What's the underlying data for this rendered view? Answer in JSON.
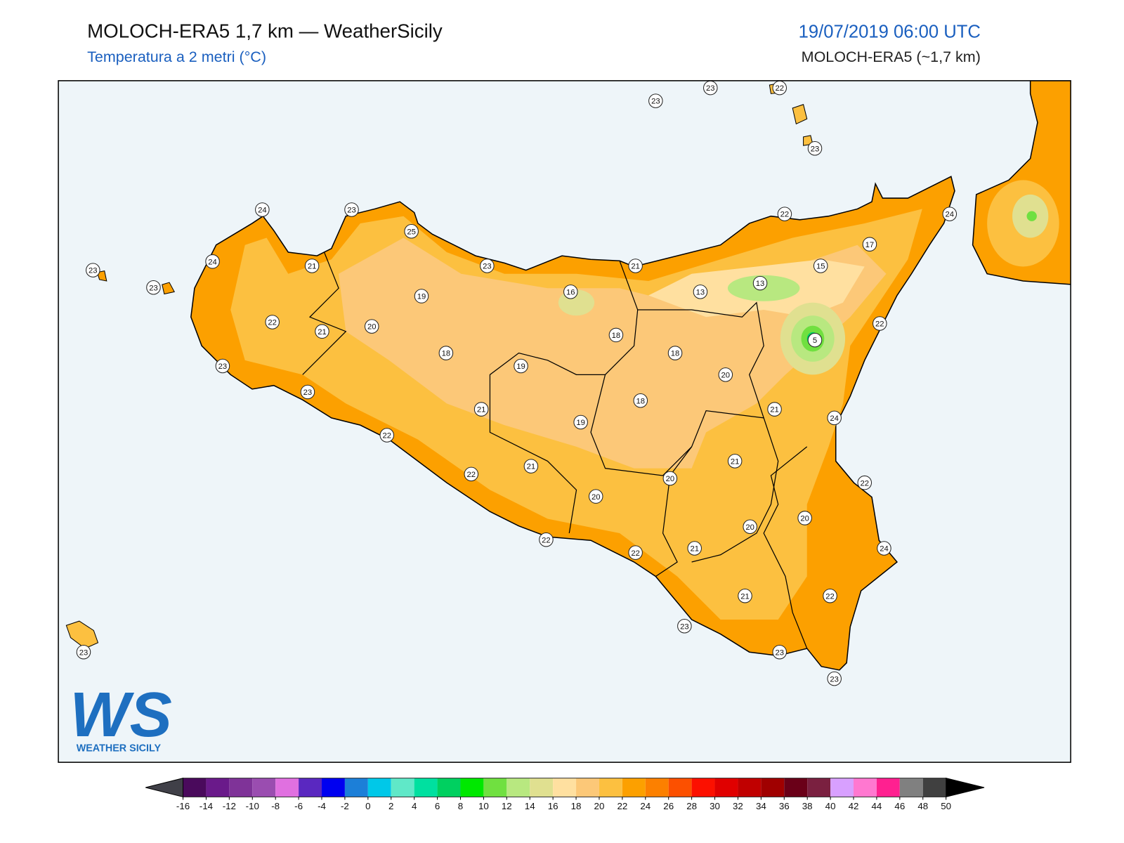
{
  "header": {
    "title": "MOLOCH-ERA5 1,7 km — WeatherSicily",
    "subtitle": "Temperatura a 2 metri (°C)",
    "datetime": "19/07/2019 06:00 UTC",
    "model": "MOLOCH-ERA5 (~1,7 km)"
  },
  "stations": [
    23,
    23,
    22,
    23,
    24,
    23,
    25,
    22,
    24,
    17,
    23,
    24,
    21,
    23,
    21,
    15,
    23,
    19,
    16,
    13,
    13,
    22,
    21,
    20,
    22,
    5,
    18,
    18,
    18,
    23,
    19,
    20,
    23,
    18,
    21,
    21,
    19,
    24,
    22,
    21,
    21,
    22,
    20,
    22,
    20,
    20,
    20,
    22,
    22,
    21,
    24,
    21,
    22,
    23,
    23,
    23,
    23
  ],
  "colorbar": {
    "ticks": [
      -16,
      -14,
      -12,
      -10,
      -8,
      -6,
      -4,
      -2,
      0,
      2,
      4,
      6,
      8,
      10,
      12,
      14,
      16,
      18,
      20,
      22,
      24,
      26,
      28,
      30,
      32,
      34,
      36,
      38,
      40,
      42,
      44,
      46,
      48,
      50
    ],
    "colors": [
      "#4a0a5c",
      "#6a1a8a",
      "#7f3398",
      "#9a4db0",
      "#e070e0",
      "#5a28c0",
      "#0000f0",
      "#1c7fd8",
      "#00c8e8",
      "#60e8c8",
      "#00e0a0",
      "#00d060",
      "#00e800",
      "#70e040",
      "#b8e880",
      "#e0e090",
      "#ffe0a0",
      "#fcc878",
      "#fcc040",
      "#fca000",
      "#fc8000",
      "#fc5000",
      "#fc1000",
      "#e00000",
      "#c00000",
      "#a00000",
      "#6a0018",
      "#7a2040",
      "#d8a0ff",
      "#ff78d0",
      "#ff2090",
      "#808080",
      "#404040"
    ],
    "under_color": "#404048",
    "over_color": "#000000"
  },
  "logo": {
    "mark": "WS",
    "name": "WEATHER SICILY"
  }
}
